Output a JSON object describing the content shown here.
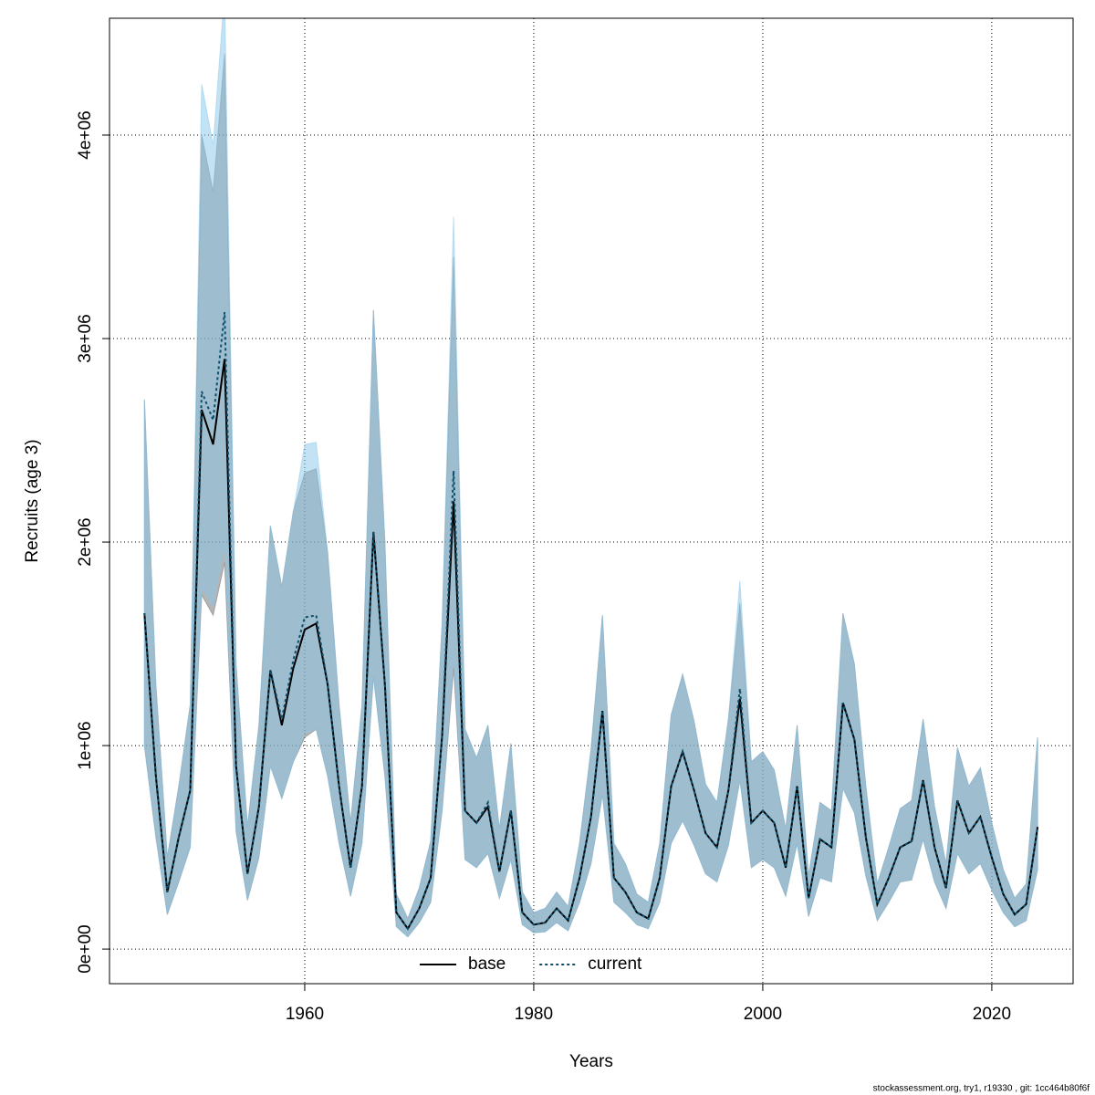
{
  "chart_data": {
    "type": "line",
    "xlabel": "Years",
    "ylabel": "Recruits (age 3)",
    "footnote": "stockassessment.org, try1, r19330 , git: 1cc464b80f6f",
    "grid": true,
    "legend": "bottom",
    "xlim": [
      1942.95,
      2027.1
    ],
    "xticks": [
      1960,
      1980,
      2000,
      2020
    ],
    "ylim": [
      -170000,
      4574000
    ],
    "yticks": [
      {
        "value": 0,
        "label": "0e+00"
      },
      {
        "value": 1000000,
        "label": "1e+06"
      },
      {
        "value": 2000000,
        "label": "2e+06"
      },
      {
        "value": 3000000,
        "label": "3e+06"
      },
      {
        "value": 4000000,
        "label": "4e+06"
      }
    ],
    "x": [
      1946,
      1947,
      1948,
      1949,
      1950,
      1951,
      1952,
      1953,
      1954,
      1955,
      1956,
      1957,
      1958,
      1959,
      1960,
      1961,
      1962,
      1963,
      1964,
      1965,
      1966,
      1967,
      1968,
      1969,
      1970,
      1971,
      1972,
      1973,
      1974,
      1975,
      1976,
      1977,
      1978,
      1979,
      1980,
      1981,
      1982,
      1983,
      1984,
      1985,
      1986,
      1987,
      1988,
      1989,
      1990,
      1991,
      1992,
      1993,
      1994,
      1995,
      1996,
      1997,
      1998,
      1999,
      2000,
      2001,
      2002,
      2003,
      2004,
      2005,
      2006,
      2007,
      2008,
      2009,
      2010,
      2011,
      2012,
      2013,
      2014,
      2015,
      2016,
      2017,
      2018,
      2019,
      2020,
      2021,
      2022,
      2023,
      2024
    ],
    "series": [
      {
        "name": "base",
        "color": "#000000",
        "dash": "none",
        "band_color": "rgba(120,120,120,0.55)",
        "values": [
          1650000,
          850000,
          280000,
          550000,
          780000,
          2650000,
          2480000,
          2900000,
          900000,
          370000,
          700000,
          1370000,
          1100000,
          1380000,
          1570000,
          1600000,
          1300000,
          800000,
          400000,
          800000,
          2050000,
          1300000,
          180000,
          100000,
          200000,
          350000,
          1050000,
          2200000,
          680000,
          620000,
          700000,
          380000,
          680000,
          180000,
          120000,
          130000,
          200000,
          140000,
          350000,
          650000,
          1170000,
          350000,
          280000,
          180000,
          150000,
          350000,
          800000,
          970000,
          780000,
          570000,
          500000,
          780000,
          1230000,
          620000,
          680000,
          620000,
          400000,
          800000,
          250000,
          540000,
          500000,
          1210000,
          1030000,
          550000,
          220000,
          350000,
          500000,
          530000,
          830000,
          500000,
          300000,
          730000,
          570000,
          650000,
          450000,
          270000,
          170000,
          220000,
          600000
        ],
        "upper": [
          2700000,
          1300000,
          450000,
          800000,
          1200000,
          4000000,
          3720000,
          4400000,
          1400000,
          600000,
          1100000,
          2080000,
          1780000,
          2150000,
          2340000,
          2360000,
          1950000,
          1200000,
          620000,
          1200000,
          3140000,
          2000000,
          270000,
          150000,
          300000,
          530000,
          1600000,
          3400000,
          1080000,
          940000,
          1100000,
          590000,
          1010000,
          280000,
          180000,
          200000,
          280000,
          210000,
          520000,
          980000,
          1640000,
          520000,
          420000,
          270000,
          230000,
          520000,
          1150000,
          1350000,
          1120000,
          810000,
          720000,
          1130000,
          1700000,
          920000,
          970000,
          880000,
          590000,
          1100000,
          360000,
          720000,
          680000,
          1650000,
          1400000,
          800000,
          320000,
          500000,
          690000,
          730000,
          1130000,
          700000,
          420000,
          990000,
          800000,
          890000,
          620000,
          390000,
          250000,
          320000,
          1040000
        ],
        "lower": [
          1000000,
          550000,
          170000,
          330000,
          500000,
          1740000,
          1640000,
          1900000,
          580000,
          240000,
          450000,
          900000,
          740000,
          920000,
          1040000,
          1080000,
          850000,
          520000,
          260000,
          520000,
          1340000,
          850000,
          110000,
          60000,
          130000,
          230000,
          680000,
          1380000,
          440000,
          400000,
          470000,
          250000,
          440000,
          120000,
          80000,
          85000,
          130000,
          90000,
          230000,
          420000,
          760000,
          230000,
          180000,
          120000,
          100000,
          230000,
          520000,
          630000,
          510000,
          370000,
          330000,
          510000,
          830000,
          400000,
          440000,
          400000,
          260000,
          520000,
          160000,
          350000,
          330000,
          790000,
          670000,
          360000,
          140000,
          230000,
          330000,
          340000,
          540000,
          330000,
          200000,
          470000,
          370000,
          420000,
          290000,
          180000,
          110000,
          140000,
          390000
        ]
      },
      {
        "name": "current",
        "color": "#0b4f6c",
        "dash": "3,3",
        "band_color": "rgba(135,200,235,0.5)",
        "values": [
          1650000,
          850000,
          280000,
          550000,
          780000,
          2740000,
          2600000,
          3130000,
          900000,
          370000,
          700000,
          1370000,
          1130000,
          1420000,
          1630000,
          1640000,
          1300000,
          800000,
          400000,
          800000,
          2050000,
          1300000,
          180000,
          100000,
          200000,
          350000,
          1050000,
          2350000,
          680000,
          620000,
          720000,
          380000,
          680000,
          180000,
          120000,
          130000,
          200000,
          140000,
          350000,
          650000,
          1170000,
          350000,
          280000,
          180000,
          150000,
          350000,
          800000,
          970000,
          780000,
          570000,
          500000,
          780000,
          1280000,
          620000,
          680000,
          620000,
          400000,
          800000,
          250000,
          540000,
          500000,
          1210000,
          1030000,
          550000,
          220000,
          350000,
          500000,
          530000,
          830000,
          500000,
          300000,
          730000,
          570000,
          650000,
          450000,
          270000,
          170000,
          220000,
          600000
        ],
        "upper": [
          2700000,
          1300000,
          450000,
          800000,
          1200000,
          4250000,
          3950000,
          4700000,
          1400000,
          600000,
          1100000,
          2080000,
          1780000,
          2150000,
          2480000,
          2490000,
          1950000,
          1200000,
          620000,
          1200000,
          3140000,
          2000000,
          270000,
          150000,
          300000,
          530000,
          1600000,
          3600000,
          1080000,
          940000,
          1100000,
          590000,
          1010000,
          280000,
          180000,
          200000,
          280000,
          210000,
          520000,
          980000,
          1640000,
          520000,
          420000,
          270000,
          230000,
          520000,
          1150000,
          1350000,
          1120000,
          810000,
          720000,
          1130000,
          1810000,
          920000,
          970000,
          880000,
          590000,
          1100000,
          360000,
          720000,
          680000,
          1650000,
          1400000,
          800000,
          320000,
          500000,
          690000,
          730000,
          1130000,
          700000,
          420000,
          990000,
          800000,
          890000,
          620000,
          390000,
          250000,
          320000,
          1040000
        ],
        "lower": [
          1000000,
          550000,
          170000,
          330000,
          500000,
          1780000,
          1680000,
          2000000,
          580000,
          240000,
          450000,
          900000,
          740000,
          920000,
          1060000,
          1080000,
          850000,
          520000,
          260000,
          520000,
          1340000,
          850000,
          110000,
          60000,
          130000,
          230000,
          680000,
          1450000,
          440000,
          400000,
          470000,
          250000,
          440000,
          120000,
          80000,
          85000,
          130000,
          90000,
          230000,
          420000,
          760000,
          230000,
          180000,
          120000,
          100000,
          230000,
          520000,
          630000,
          510000,
          370000,
          330000,
          510000,
          830000,
          400000,
          440000,
          400000,
          260000,
          520000,
          160000,
          350000,
          330000,
          790000,
          670000,
          360000,
          140000,
          230000,
          330000,
          340000,
          540000,
          330000,
          200000,
          470000,
          370000,
          420000,
          290000,
          180000,
          110000,
          140000,
          390000
        ]
      }
    ]
  }
}
